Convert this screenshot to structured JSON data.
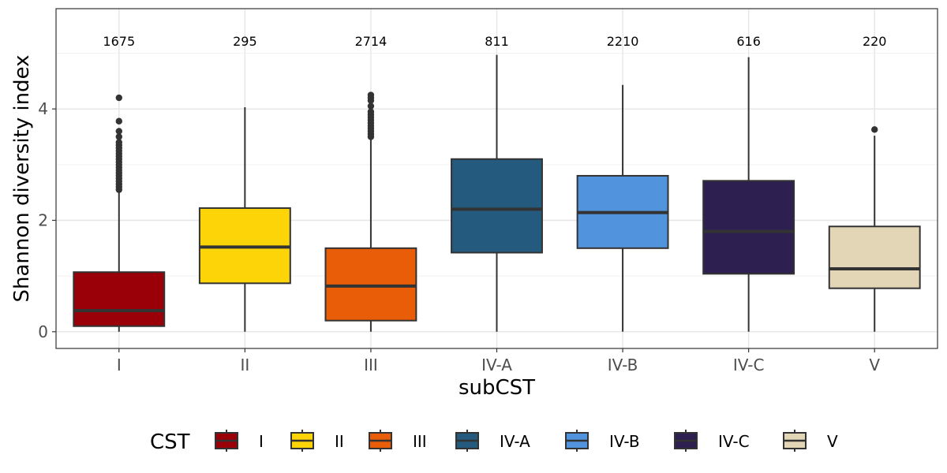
{
  "chart_data": {
    "type": "box",
    "xlabel": "subCST",
    "ylabel": "Shannon diversity index",
    "ylim": [
      -0.3,
      5.8
    ],
    "y_ticks": [
      0,
      2,
      4
    ],
    "grid": true,
    "legend_position": "bottom",
    "legend_title": "CST",
    "categories": [
      "I",
      "II",
      "III",
      "IV-A",
      "IV-B",
      "IV-C",
      "V"
    ],
    "boxes": [
      {
        "label": "I",
        "count": "1675",
        "color": "#990008",
        "whisker_low": 0.0,
        "q1": 0.1,
        "median": 0.38,
        "q3": 1.07,
        "whisker_high": 2.5,
        "outliers": [
          2.55,
          2.6,
          2.65,
          2.7,
          2.75,
          2.8,
          2.85,
          2.9,
          2.95,
          3.0,
          3.05,
          3.1,
          3.15,
          3.2,
          3.25,
          3.3,
          3.35,
          3.4,
          3.5,
          3.6,
          3.78,
          4.2
        ]
      },
      {
        "label": "II",
        "count": "295",
        "color": "#FDD408",
        "whisker_low": 0.0,
        "q1": 0.87,
        "median": 1.52,
        "q3": 2.22,
        "whisker_high": 4.03,
        "outliers": []
      },
      {
        "label": "III",
        "count": "2714",
        "color": "#E95D08",
        "whisker_low": 0.0,
        "q1": 0.2,
        "median": 0.82,
        "q3": 1.5,
        "whisker_high": 3.45,
        "outliers": [
          3.5,
          3.55,
          3.6,
          3.65,
          3.7,
          3.75,
          3.8,
          3.85,
          3.9,
          3.95,
          4.05,
          4.15,
          4.2,
          4.25
        ]
      },
      {
        "label": "IV-A",
        "count": "811",
        "color": "#245A7E",
        "whisker_low": 0.0,
        "q1": 1.42,
        "median": 2.2,
        "q3": 3.1,
        "whisker_high": 4.97,
        "outliers": []
      },
      {
        "label": "IV-B",
        "count": "2210",
        "color": "#5193DC",
        "whisker_low": 0.0,
        "q1": 1.5,
        "median": 2.14,
        "q3": 2.8,
        "whisker_high": 4.43,
        "outliers": []
      },
      {
        "label": "IV-C",
        "count": "616",
        "color": "#2D2050",
        "whisker_low": 0.0,
        "q1": 1.04,
        "median": 1.8,
        "q3": 2.71,
        "whisker_high": 4.93,
        "outliers": []
      },
      {
        "label": "V",
        "count": "220",
        "color": "#E2D6B6",
        "whisker_low": 0.0,
        "q1": 0.78,
        "median": 1.13,
        "q3": 1.89,
        "whisker_high": 3.52,
        "outliers": [
          3.63
        ]
      }
    ]
  }
}
